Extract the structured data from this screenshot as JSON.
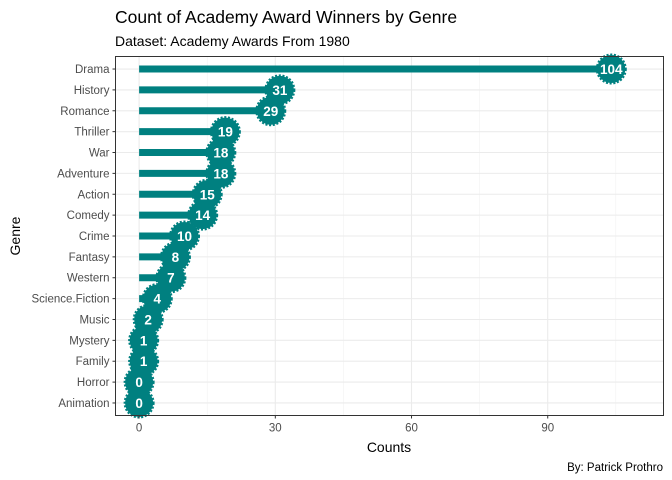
{
  "chart_data": {
    "type": "bar",
    "style": "lollipop, horizontal",
    "title": "Count of Academy Award Winners by Genre",
    "subtitle": "Dataset: Academy Awards From 1980",
    "xlabel": "Counts",
    "ylabel": "Genre",
    "caption": "By: Patrick Prothro",
    "categories": [
      "Drama",
      "History",
      "Romance",
      "Thriller",
      "War",
      "Adventure",
      "Action",
      "Comedy",
      "Crime",
      "Fantasy",
      "Western",
      "Science.Fiction",
      "Music",
      "Mystery",
      "Family",
      "Horror",
      "Animation"
    ],
    "values": [
      104,
      31,
      29,
      19,
      18,
      18,
      15,
      14,
      10,
      8,
      7,
      4,
      2,
      1,
      1,
      0,
      0
    ],
    "xticks": [
      0,
      30,
      60,
      90
    ],
    "xlim": [
      -5.2,
      115.5
    ],
    "grid": true,
    "legend": "none",
    "bar_color": "#008080",
    "label_color": "#ffffff"
  }
}
